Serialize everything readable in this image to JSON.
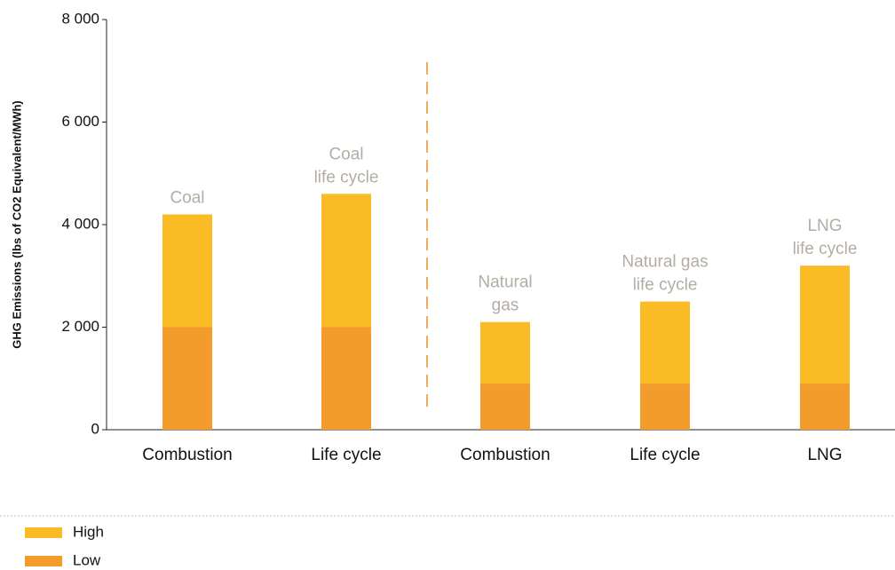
{
  "chart_data": {
    "type": "stacked_bar",
    "y_label": "GHG Emissions (lbs of CO2 Equivalent/MWh)",
    "categories": [
      "Combustion",
      "Life cycle",
      "Combustion",
      "Life cycle",
      "LNG"
    ],
    "annotations": [
      [
        "Coal"
      ],
      [
        "Coal",
        "life cycle"
      ],
      [
        "Natural",
        "gas"
      ],
      [
        "Natural gas",
        "life cycle"
      ],
      [
        "LNG",
        "life cycle"
      ]
    ],
    "series": [
      {
        "name": "Low",
        "color": "#f39c2b",
        "values": [
          2000,
          2000,
          900,
          900,
          900
        ]
      },
      {
        "name": "High",
        "color": "#fbbb25",
        "values": [
          2200,
          2600,
          1200,
          1600,
          2300
        ]
      }
    ],
    "legend_order": [
      1,
      0
    ],
    "ylim": [
      0,
      8000
    ],
    "yticks": [
      0,
      {
        "value": 2000,
        "label": "2 000"
      },
      {
        "value": 4000,
        "label": "4 000"
      },
      {
        "value": 6000,
        "label": "6 000"
      },
      {
        "value": 8000,
        "label": "8 000"
      }
    ],
    "grid": false
  }
}
